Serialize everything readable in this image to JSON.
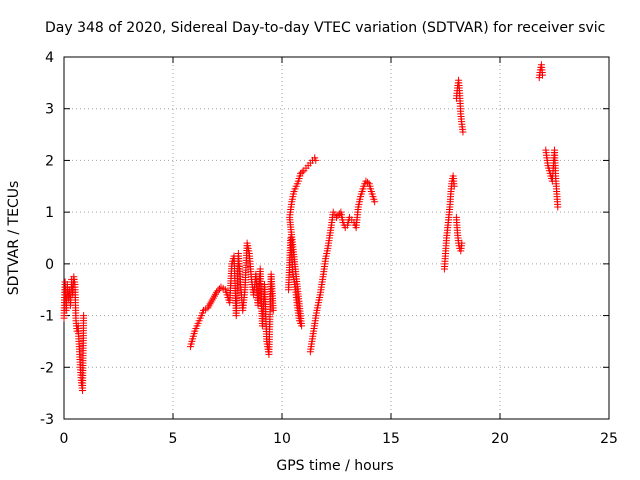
{
  "chart_data": {
    "type": "scatter",
    "title": "Day 348 of 2020, Sidereal Day-to-day VTEC variation (SDTVAR) for receiver svic",
    "xlabel": "GPS time / hours",
    "ylabel": "SDTVAR / TECUs",
    "xlim": [
      0,
      25
    ],
    "ylim": [
      -3,
      4
    ],
    "xticks": [
      "0",
      "5",
      "10",
      "15",
      "20",
      "25"
    ],
    "yticks": [
      "-3",
      "-2",
      "-1",
      "0",
      "1",
      "2",
      "3",
      "4"
    ],
    "grid": true,
    "marker": "plus",
    "color": "#ff0000",
    "series": [
      {
        "name": "SDTVAR",
        "segments": [
          [
            [
              0.0,
              -1.05
            ],
            [
              0.05,
              -0.35
            ],
            [
              0.1,
              -0.9
            ],
            [
              0.15,
              -0.4
            ],
            [
              0.2,
              -0.7
            ],
            [
              0.25,
              -0.5
            ],
            [
              0.3,
              -0.8
            ],
            [
              0.35,
              -0.3
            ],
            [
              0.4,
              -0.6
            ],
            [
              0.45,
              -0.25
            ],
            [
              0.5,
              -0.4
            ],
            [
              0.55,
              -1.1
            ],
            [
              0.6,
              -1.3
            ],
            [
              0.65,
              -1.2
            ],
            [
              0.7,
              -1.6
            ],
            [
              0.75,
              -2.0
            ],
            [
              0.8,
              -2.3
            ],
            [
              0.85,
              -2.45
            ],
            [
              0.9,
              -1.0
            ]
          ],
          [
            [
              5.8,
              -1.6
            ],
            [
              6.0,
              -1.3
            ],
            [
              6.2,
              -1.1
            ],
            [
              6.4,
              -0.9
            ],
            [
              6.6,
              -0.85
            ],
            [
              6.8,
              -0.7
            ],
            [
              7.0,
              -0.55
            ],
            [
              7.2,
              -0.45
            ],
            [
              7.4,
              -0.5
            ],
            [
              7.6,
              -0.75
            ],
            [
              7.7,
              0.0
            ],
            [
              7.8,
              0.15
            ],
            [
              7.9,
              -1.0
            ],
            [
              8.0,
              0.2
            ],
            [
              8.1,
              -0.4
            ],
            [
              8.2,
              -0.9
            ],
            [
              8.3,
              -0.5
            ],
            [
              8.4,
              0.4
            ],
            [
              8.5,
              0.2
            ],
            [
              8.6,
              -0.3
            ],
            [
              8.7,
              -0.6
            ],
            [
              8.8,
              -0.2
            ],
            [
              8.9,
              -0.8
            ],
            [
              9.0,
              -0.1
            ],
            [
              9.1,
              -1.2
            ],
            [
              9.2,
              -0.4
            ],
            [
              9.3,
              -1.5
            ],
            [
              9.4,
              -1.75
            ],
            [
              9.5,
              -0.2
            ],
            [
              9.6,
              -0.9
            ]
          ],
          [
            [
              10.3,
              -0.5
            ],
            [
              10.4,
              0.5
            ],
            [
              10.5,
              -0.2
            ],
            [
              10.6,
              -0.4
            ],
            [
              10.7,
              -0.8
            ],
            [
              10.8,
              -1.1
            ],
            [
              10.9,
              -1.2
            ],
            [
              10.35,
              0.9
            ],
            [
              10.45,
              1.2
            ],
            [
              10.55,
              1.4
            ],
            [
              10.65,
              1.5
            ],
            [
              10.75,
              1.6
            ],
            [
              10.85,
              1.75
            ],
            [
              11.0,
              1.8
            ],
            [
              11.1,
              1.85
            ],
            [
              11.2,
              1.9
            ],
            [
              11.3,
              1.95
            ],
            [
              11.4,
              2.0
            ],
            [
              11.5,
              2.05
            ],
            [
              11.55,
              2.0
            ]
          ],
          [
            [
              11.3,
              -1.7
            ],
            [
              11.45,
              -1.3
            ],
            [
              11.6,
              -0.9
            ],
            [
              11.75,
              -0.6
            ],
            [
              11.9,
              -0.2
            ],
            [
              12.0,
              0.1
            ],
            [
              12.1,
              0.3
            ],
            [
              12.25,
              0.7
            ],
            [
              12.35,
              1.0
            ],
            [
              12.5,
              0.9
            ],
            [
              12.7,
              1.0
            ],
            [
              12.8,
              0.8
            ],
            [
              12.9,
              0.7
            ],
            [
              13.0,
              0.75
            ],
            [
              13.1,
              0.9
            ],
            [
              13.2,
              0.85
            ],
            [
              13.3,
              0.8
            ],
            [
              13.4,
              0.7
            ],
            [
              13.5,
              1.1
            ],
            [
              13.6,
              1.3
            ],
            [
              13.75,
              1.5
            ],
            [
              13.85,
              1.6
            ],
            [
              14.0,
              1.55
            ],
            [
              14.1,
              1.4
            ],
            [
              14.25,
              1.2
            ]
          ],
          [
            [
              17.45,
              -0.1
            ],
            [
              17.5,
              0.2
            ],
            [
              17.55,
              0.5
            ],
            [
              17.6,
              0.7
            ],
            [
              17.65,
              0.9
            ],
            [
              17.7,
              1.1
            ],
            [
              17.75,
              1.4
            ],
            [
              17.8,
              1.6
            ],
            [
              17.85,
              1.7
            ],
            [
              17.9,
              1.5
            ]
          ],
          [
            [
              18.0,
              0.9
            ],
            [
              18.05,
              0.6
            ],
            [
              18.1,
              0.4
            ],
            [
              18.15,
              0.3
            ],
            [
              18.2,
              0.25
            ],
            [
              18.25,
              0.4
            ]
          ],
          [
            [
              18.0,
              3.2
            ],
            [
              18.05,
              3.4
            ],
            [
              18.1,
              3.55
            ],
            [
              18.15,
              3.3
            ],
            [
              18.2,
              2.9
            ],
            [
              18.25,
              2.7
            ],
            [
              18.3,
              2.55
            ]
          ],
          [
            [
              21.8,
              3.6
            ],
            [
              21.85,
              3.75
            ],
            [
              21.9,
              3.85
            ],
            [
              21.95,
              3.65
            ]
          ],
          [
            [
              22.1,
              2.2
            ],
            [
              22.2,
              1.9
            ],
            [
              22.3,
              1.75
            ],
            [
              22.4,
              1.6
            ],
            [
              22.5,
              2.2
            ],
            [
              22.55,
              1.7
            ],
            [
              22.6,
              1.4
            ],
            [
              22.65,
              1.1
            ]
          ]
        ]
      }
    ]
  }
}
